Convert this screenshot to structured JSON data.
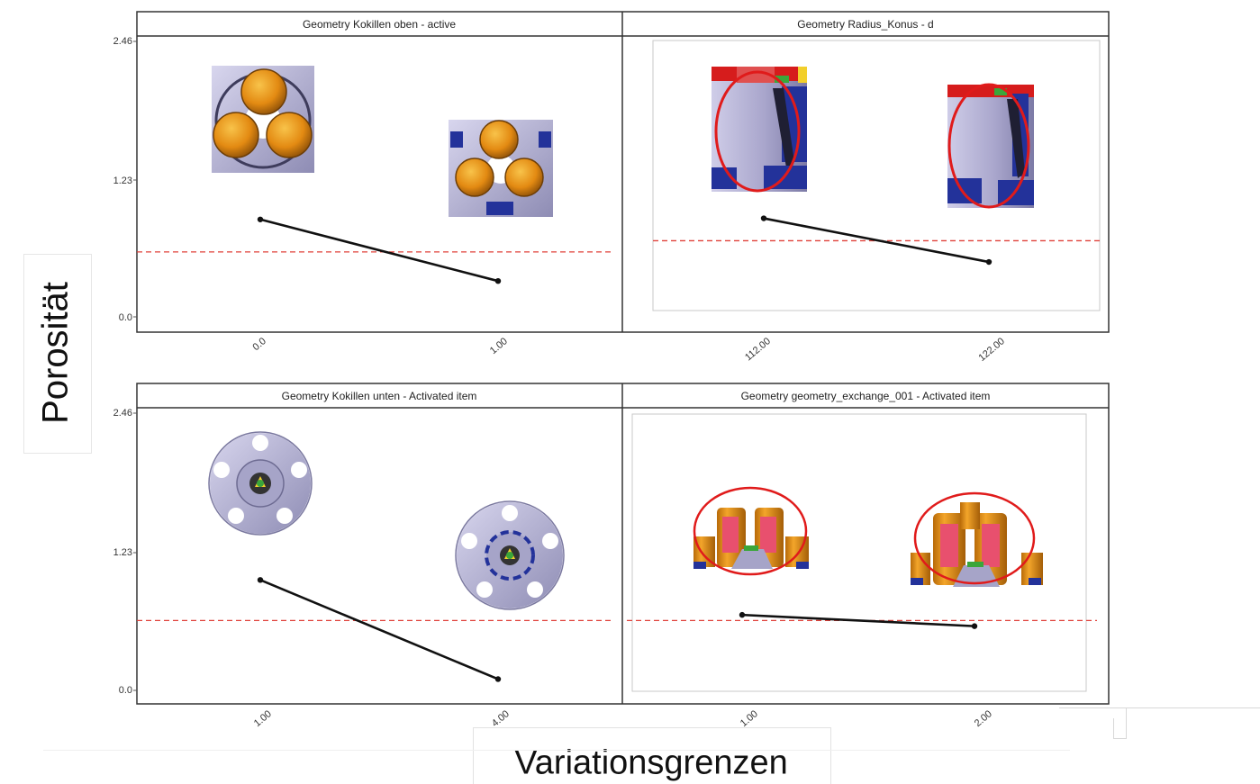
{
  "axis_labels": {
    "y": "Porosität",
    "x": "Variationsgrenzen"
  },
  "colors": {
    "line": "#111111",
    "reference_dash": "#e0413a",
    "panel_border": "#333333",
    "metal": "#b9b6d6",
    "metal_dark": "#6c6a90",
    "orange": "#e7951a",
    "orange_dark": "#9a5a0c",
    "blue": "#23329a",
    "red_ring": "#e01b1b",
    "pink": "#e8506e",
    "green": "#3aa63a",
    "yellow": "#f2cf2b"
  },
  "icons": {
    "panel_1": [
      "kokille-top-three-cores-icon",
      "kokille-top-three-cores-blue-icon"
    ],
    "panel_2": [
      "radius-cone-section-icon",
      "radius-cone-section-icon"
    ],
    "panel_3": [
      "wheel-five-holes-icon",
      "wheel-five-holes-blue-ring-icon"
    ],
    "panel_4": [
      "geometry-exchange-core-icon",
      "geometry-exchange-core-icon"
    ]
  },
  "chart_data": [
    {
      "type": "line",
      "title": "Geometry Kokillen oben - active",
      "x": [
        "0.0",
        "1.00"
      ],
      "values": [
        0.87,
        0.32
      ],
      "ylim": [
        0.0,
        2.46
      ],
      "yticks": [
        "0.0",
        "1.23",
        "2.46"
      ],
      "reference_line": 0.58
    },
    {
      "type": "line",
      "title": "Geometry Radius_Konus - d",
      "x": [
        "112.00",
        "122.00"
      ],
      "values": [
        0.88,
        0.49
      ],
      "ylim": [
        0.0,
        2.46
      ],
      "yticks": [
        "0.0",
        "1.23",
        "2.46"
      ],
      "reference_line": 0.68
    },
    {
      "type": "line",
      "title": "Geometry Kokillen unten - Activated item",
      "x": [
        "1.00",
        "4.00"
      ],
      "values": [
        0.98,
        0.1
      ],
      "ylim": [
        0.0,
        2.46
      ],
      "yticks": [
        "0.0",
        "1.23",
        "2.46"
      ],
      "reference_line": 0.62
    },
    {
      "type": "line",
      "title": "Geometry geometry_exchange_001 - Activated item",
      "x": [
        "1.00",
        "2.00"
      ],
      "values": [
        0.67,
        0.57
      ],
      "ylim": [
        0.0,
        2.46
      ],
      "yticks": [
        "0.0",
        "1.23",
        "2.46"
      ],
      "reference_line": 0.62
    }
  ]
}
